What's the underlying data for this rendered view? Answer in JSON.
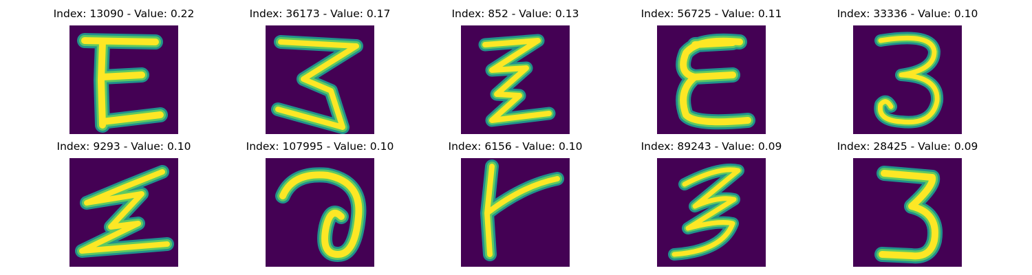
{
  "colors": {
    "background": "#440154",
    "stroke_outer": "#21918c",
    "stroke_mid": "#5ec962",
    "stroke_inner": "#fde725"
  },
  "panels": [
    {
      "title": "Index: 13090 - Value: 0.22",
      "glyph": "E-like-letter"
    },
    {
      "title": "Index: 36173 - Value: 0.17",
      "glyph": "zigzag-3"
    },
    {
      "title": "Index: 852 - Value: 0.13",
      "glyph": "zigzag-small"
    },
    {
      "title": "Index: 56725 - Value: 0.11",
      "glyph": "epsilon-E"
    },
    {
      "title": "Index: 33336 - Value: 0.10",
      "glyph": "digit-3"
    },
    {
      "title": "Index: 9293 - Value: 0.10",
      "glyph": "zigzag-z"
    },
    {
      "title": "Index: 107995 - Value: 0.10",
      "glyph": "loop-a"
    },
    {
      "title": "Index: 6156 - Value: 0.10",
      "glyph": "t-cross"
    },
    {
      "title": "Index: 89243 - Value: 0.09",
      "glyph": "slanted-3"
    },
    {
      "title": "Index: 28425 - Value: 0.09",
      "glyph": "digit-3-bold"
    }
  ]
}
